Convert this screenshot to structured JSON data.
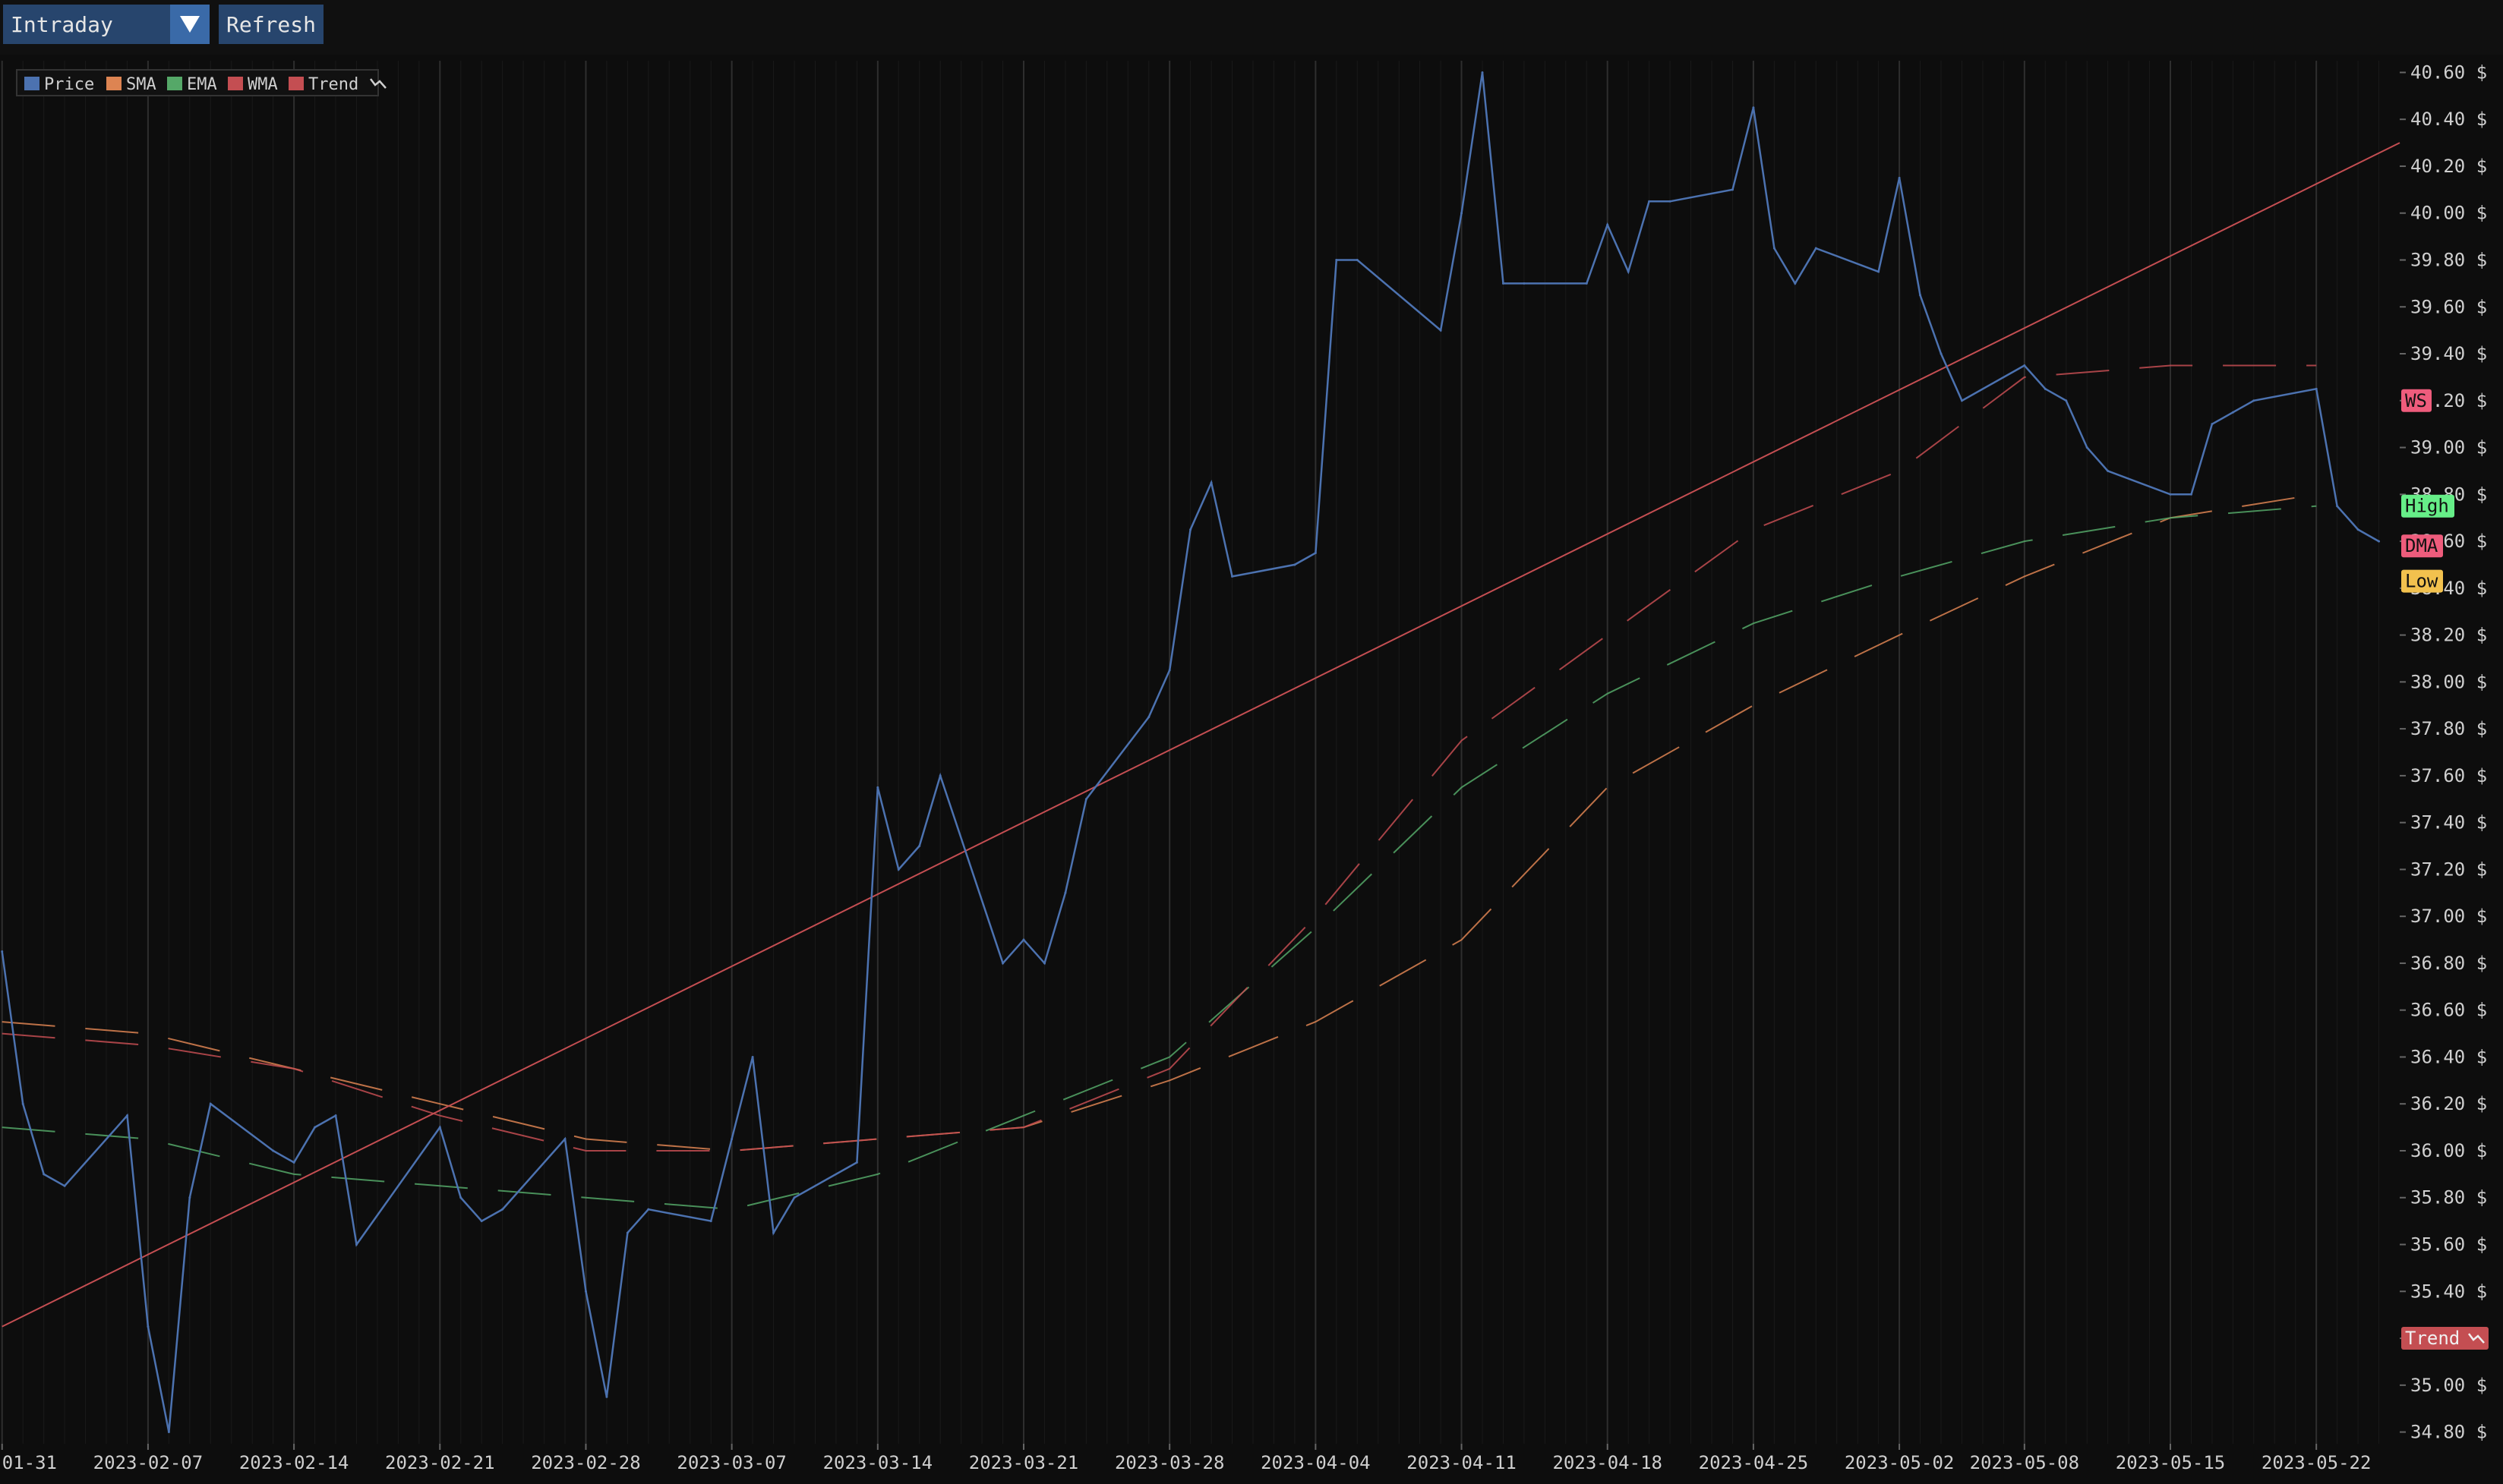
{
  "controls": {
    "mode_label": "Intraday",
    "refresh_label": "Refresh"
  },
  "colors": {
    "price": "#4c72b0",
    "sma": "#dd8452",
    "ema": "#55a868",
    "wma": "#c44e52",
    "trend": "#c44e52",
    "high_tag": "#66ee88",
    "low_tag": "#f2c14e",
    "ws_tag": "#ee5c7c",
    "dma_tag": "#ee5c7c"
  },
  "chart_data": {
    "type": "line",
    "title": "",
    "xlabel": "",
    "ylabel": "",
    "ylim": [
      34.75,
      40.65
    ],
    "xlim": [
      "2023-01-31",
      "2023-05-26"
    ],
    "y_tick_suffix": " $",
    "y_ticks": [
      "34.80",
      "35.00",
      "35.20",
      "35.40",
      "35.60",
      "35.80",
      "36.00",
      "36.20",
      "36.40",
      "36.60",
      "36.80",
      "37.00",
      "37.20",
      "37.40",
      "37.60",
      "37.80",
      "38.00",
      "38.20",
      "38.40",
      "38.60",
      "38.80",
      "39.00",
      "39.20",
      "39.40",
      "39.60",
      "39.80",
      "40.00",
      "40.20",
      "40.40",
      "40.60"
    ],
    "x_ticks": [
      "2023-01-31",
      "2023-02-07",
      "2023-02-14",
      "2023-02-21",
      "2023-02-28",
      "2023-03-07",
      "2023-03-14",
      "2023-03-21",
      "2023-03-28",
      "2023-04-04",
      "2023-04-11",
      "2023-04-18",
      "2023-04-25",
      "2023-05-02",
      "2023-05-08",
      "2023-05-15",
      "2023-05-22"
    ],
    "legend_position": "top-left",
    "legend": [
      "Price",
      "SMA",
      "EMA",
      "WMA",
      "Trend"
    ],
    "grid": true,
    "tags": {
      "ws": "WS",
      "high": "High",
      "dma": "DMA",
      "low": "Low",
      "trend": "Trend"
    },
    "tag_values": {
      "ws": 39.2,
      "high": 38.75,
      "dma": 38.58,
      "low": 38.43,
      "trend": 35.2
    },
    "series": [
      {
        "name": "Price",
        "x": [
          "2023-01-31",
          "2023-02-01",
          "2023-02-02",
          "2023-02-03",
          "2023-02-06",
          "2023-02-07",
          "2023-02-08",
          "2023-02-09",
          "2023-02-10",
          "2023-02-13",
          "2023-02-14",
          "2023-02-15",
          "2023-02-16",
          "2023-02-17",
          "2023-02-21",
          "2023-02-22",
          "2023-02-23",
          "2023-02-24",
          "2023-02-27",
          "2023-02-28",
          "2023-03-01",
          "2023-03-02",
          "2023-03-03",
          "2023-03-06",
          "2023-03-07",
          "2023-03-08",
          "2023-03-09",
          "2023-03-10",
          "2023-03-13",
          "2023-03-14",
          "2023-03-15",
          "2023-03-16",
          "2023-03-17",
          "2023-03-20",
          "2023-03-21",
          "2023-03-22",
          "2023-03-23",
          "2023-03-24",
          "2023-03-27",
          "2023-03-28",
          "2023-03-29",
          "2023-03-30",
          "2023-03-31",
          "2023-04-03",
          "2023-04-04",
          "2023-04-05",
          "2023-04-06",
          "2023-04-10",
          "2023-04-11",
          "2023-04-12",
          "2023-04-13",
          "2023-04-14",
          "2023-04-17",
          "2023-04-18",
          "2023-04-19",
          "2023-04-20",
          "2023-04-21",
          "2023-04-24",
          "2023-04-25",
          "2023-04-26",
          "2023-04-27",
          "2023-04-28",
          "2023-05-01",
          "2023-05-02",
          "2023-05-03",
          "2023-05-04",
          "2023-05-05",
          "2023-05-08",
          "2023-05-09",
          "2023-05-10",
          "2023-05-11",
          "2023-05-12",
          "2023-05-15",
          "2023-05-16",
          "2023-05-17",
          "2023-05-18",
          "2023-05-19",
          "2023-05-22",
          "2023-05-23",
          "2023-05-24",
          "2023-05-25"
        ],
        "values": [
          36.85,
          36.2,
          35.9,
          35.85,
          36.15,
          35.25,
          34.8,
          35.8,
          36.2,
          36.0,
          35.95,
          36.1,
          36.15,
          35.6,
          36.1,
          35.8,
          35.7,
          35.75,
          36.05,
          35.4,
          34.95,
          35.65,
          35.75,
          35.7,
          36.05,
          36.4,
          35.65,
          35.8,
          35.95,
          37.55,
          37.2,
          37.3,
          37.6,
          36.8,
          36.9,
          36.8,
          37.1,
          37.5,
          37.85,
          38.05,
          38.65,
          38.85,
          38.45,
          38.5,
          38.55,
          39.8,
          39.8,
          39.5,
          40.0,
          40.6,
          39.7,
          39.7,
          39.7,
          39.95,
          39.75,
          40.05,
          40.05,
          40.1,
          40.45,
          39.85,
          39.7,
          39.85,
          39.75,
          40.15,
          39.65,
          39.4,
          39.2,
          39.35,
          39.25,
          39.2,
          39.0,
          38.9,
          38.8,
          38.8,
          39.1,
          39.15,
          39.2,
          39.25,
          38.75,
          38.65,
          38.6
        ]
      },
      {
        "name": "SMA",
        "x": [
          "2023-01-31",
          "2023-02-07",
          "2023-02-14",
          "2023-02-21",
          "2023-02-28",
          "2023-03-07",
          "2023-03-14",
          "2023-03-21",
          "2023-03-28",
          "2023-04-04",
          "2023-04-11",
          "2023-04-18",
          "2023-04-25",
          "2023-05-02",
          "2023-05-08",
          "2023-05-15",
          "2023-05-22"
        ],
        "values": [
          36.55,
          36.5,
          36.35,
          36.2,
          36.05,
          36.0,
          36.05,
          36.1,
          36.3,
          36.55,
          36.9,
          37.55,
          37.9,
          38.2,
          38.45,
          38.7,
          38.8
        ]
      },
      {
        "name": "EMA",
        "x": [
          "2023-01-31",
          "2023-02-07",
          "2023-02-14",
          "2023-02-21",
          "2023-02-28",
          "2023-03-07",
          "2023-03-14",
          "2023-03-21",
          "2023-03-28",
          "2023-04-04",
          "2023-04-11",
          "2023-04-18",
          "2023-04-25",
          "2023-05-02",
          "2023-05-08",
          "2023-05-15",
          "2023-05-22"
        ],
        "values": [
          36.1,
          36.05,
          35.9,
          35.85,
          35.8,
          35.75,
          35.9,
          36.15,
          36.4,
          36.95,
          37.55,
          37.95,
          38.25,
          38.45,
          38.6,
          38.7,
          38.75
        ]
      },
      {
        "name": "WMA",
        "x": [
          "2023-01-31",
          "2023-02-07",
          "2023-02-14",
          "2023-02-21",
          "2023-02-28",
          "2023-03-07",
          "2023-03-14",
          "2023-03-21",
          "2023-03-28",
          "2023-04-04",
          "2023-04-11",
          "2023-04-18",
          "2023-04-25",
          "2023-05-02",
          "2023-05-08",
          "2023-05-15",
          "2023-05-22"
        ],
        "values": [
          36.5,
          36.45,
          36.35,
          36.15,
          36.0,
          36.0,
          36.05,
          36.1,
          36.35,
          37.0,
          37.75,
          38.2,
          38.65,
          38.9,
          39.3,
          39.35,
          39.35
        ]
      },
      {
        "name": "Trend",
        "x": [
          "2023-01-31",
          "2023-05-26"
        ],
        "values": [
          35.25,
          40.3
        ]
      }
    ]
  }
}
